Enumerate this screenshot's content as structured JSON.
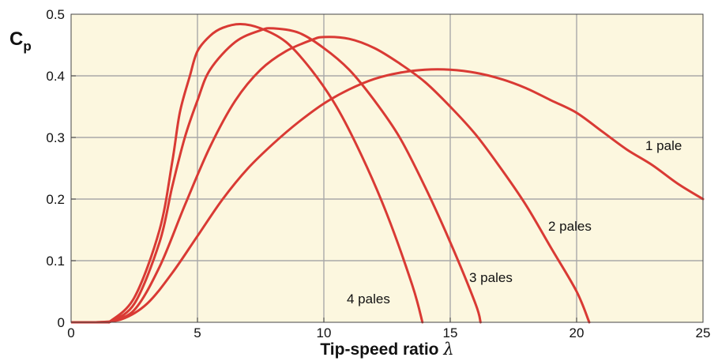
{
  "chart_data": {
    "type": "line",
    "title": "",
    "xlabel": "Tip-speed ratio",
    "xlabel_symbol": "λ",
    "ylabel": "C",
    "ylabel_sub": "p",
    "xlim": [
      0,
      25
    ],
    "ylim": [
      0,
      0.5
    ],
    "x_ticks": [
      "0",
      "5",
      "10",
      "15",
      "20",
      "25"
    ],
    "y_ticks": [
      "0",
      "0.1",
      "0.2",
      "0.3",
      "0.4",
      "0.5"
    ],
    "grid": true,
    "plot_background": "#fcf7df",
    "line_color": "#d93a34",
    "series": [
      {
        "name": "1 pale",
        "points": [
          [
            1,
            0
          ],
          [
            2,
            0.005
          ],
          [
            3,
            0.03
          ],
          [
            4,
            0.08
          ],
          [
            5,
            0.14
          ],
          [
            6,
            0.2
          ],
          [
            7,
            0.25
          ],
          [
            8,
            0.29
          ],
          [
            9,
            0.325
          ],
          [
            10,
            0.355
          ],
          [
            11,
            0.378
          ],
          [
            12,
            0.395
          ],
          [
            13,
            0.405
          ],
          [
            14,
            0.41
          ],
          [
            15,
            0.41
          ],
          [
            16,
            0.405
          ],
          [
            17,
            0.395
          ],
          [
            18,
            0.38
          ],
          [
            19,
            0.36
          ],
          [
            20,
            0.34
          ],
          [
            21,
            0.31
          ],
          [
            22,
            0.28
          ],
          [
            23,
            0.255
          ],
          [
            24,
            0.225
          ],
          [
            25,
            0.2
          ]
        ]
      },
      {
        "name": "2 pales",
        "points": [
          [
            1.5,
            0
          ],
          [
            2.5,
            0.02
          ],
          [
            3.5,
            0.09
          ],
          [
            4.5,
            0.19
          ],
          [
            5.5,
            0.285
          ],
          [
            6.5,
            0.36
          ],
          [
            7.5,
            0.41
          ],
          [
            8.5,
            0.44
          ],
          [
            9.5,
            0.458
          ],
          [
            10,
            0.463
          ],
          [
            11,
            0.46
          ],
          [
            12,
            0.445
          ],
          [
            13,
            0.42
          ],
          [
            14,
            0.39
          ],
          [
            15,
            0.35
          ],
          [
            16,
            0.305
          ],
          [
            17,
            0.25
          ],
          [
            18,
            0.19
          ],
          [
            19,
            0.12
          ],
          [
            20,
            0.05
          ],
          [
            20.5,
            0
          ]
        ]
      },
      {
        "name": "3 pales",
        "points": [
          [
            1.5,
            0
          ],
          [
            2.5,
            0.03
          ],
          [
            3.5,
            0.13
          ],
          [
            4,
            0.22
          ],
          [
            4.5,
            0.3
          ],
          [
            5,
            0.36
          ],
          [
            5.5,
            0.41
          ],
          [
            6.5,
            0.455
          ],
          [
            7.5,
            0.474
          ],
          [
            8,
            0.477
          ],
          [
            9,
            0.47
          ],
          [
            10,
            0.445
          ],
          [
            11,
            0.41
          ],
          [
            12,
            0.36
          ],
          [
            13,
            0.3
          ],
          [
            14,
            0.22
          ],
          [
            15,
            0.13
          ],
          [
            16,
            0.03
          ],
          [
            16.2,
            0
          ]
        ]
      },
      {
        "name": "4 pales",
        "points": [
          [
            1.5,
            0
          ],
          [
            2.5,
            0.04
          ],
          [
            3.5,
            0.15
          ],
          [
            4,
            0.26
          ],
          [
            4.3,
            0.34
          ],
          [
            4.7,
            0.4
          ],
          [
            5,
            0.44
          ],
          [
            5.5,
            0.465
          ],
          [
            6,
            0.478
          ],
          [
            6.7,
            0.484
          ],
          [
            7.5,
            0.477
          ],
          [
            8.5,
            0.455
          ],
          [
            9.5,
            0.41
          ],
          [
            10.5,
            0.35
          ],
          [
            11.5,
            0.27
          ],
          [
            12.5,
            0.175
          ],
          [
            13.5,
            0.06
          ],
          [
            13.9,
            0
          ]
        ]
      }
    ],
    "curve_labels": [
      "1 pale",
      "2 pales",
      "3 pales",
      "4 pales"
    ]
  }
}
